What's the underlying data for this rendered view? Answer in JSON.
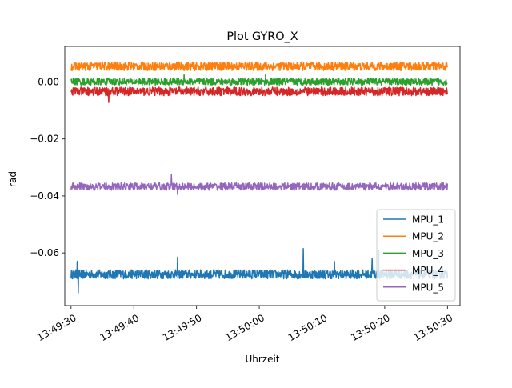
{
  "chart_data": {
    "type": "line",
    "title": "Plot GYRO_X",
    "xlabel": "Uhrzeit",
    "ylabel": "rad",
    "x_range": [
      "13:49:29",
      "13:50:32"
    ],
    "ylim": [
      -0.0785,
      0.0125
    ],
    "x_ticks": [
      "13:49:30",
      "13:49:40",
      "13:49:50",
      "13:50:00",
      "13:50:10",
      "13:50:20",
      "13:50:30"
    ],
    "y_ticks": [
      0.0,
      -0.02,
      -0.04,
      -0.06
    ],
    "y_tick_labels": [
      "0.00",
      "−0.02",
      "−0.04",
      "−0.06"
    ],
    "x_start": "13:49:30",
    "x_end": "13:50:30",
    "grid": false,
    "legend_position": "lower right",
    "series": [
      {
        "name": "MPU_1",
        "color": "#1f77b4",
        "mean": -0.0675,
        "noise": 0.0016,
        "spikes": [
          [
            "13:49:31",
            -0.063
          ],
          [
            "13:49:31",
            -0.074
          ],
          [
            "13:49:47",
            -0.0615
          ],
          [
            "13:50:07",
            -0.0585
          ],
          [
            "13:50:12",
            -0.063
          ],
          [
            "13:50:18",
            -0.062
          ],
          [
            "13:50:19",
            -0.059
          ]
        ]
      },
      {
        "name": "MPU_2",
        "color": "#ff7f0e",
        "mean": 0.0055,
        "noise": 0.0015,
        "spikes": []
      },
      {
        "name": "MPU_3",
        "color": "#2ca02c",
        "mean": 0.0001,
        "noise": 0.0012,
        "spikes": [
          [
            "13:49:48",
            0.0025
          ],
          [
            "13:50:01",
            0.0027
          ]
        ]
      },
      {
        "name": "MPU_4",
        "color": "#d62728",
        "mean": -0.0033,
        "noise": 0.0015,
        "spikes": [
          [
            "13:49:36",
            -0.0072
          ]
        ]
      },
      {
        "name": "MPU_5",
        "color": "#9467bd",
        "mean": -0.0367,
        "noise": 0.0013,
        "spikes": [
          [
            "13:49:46",
            -0.0325
          ],
          [
            "13:49:47",
            -0.0395
          ]
        ]
      }
    ]
  }
}
